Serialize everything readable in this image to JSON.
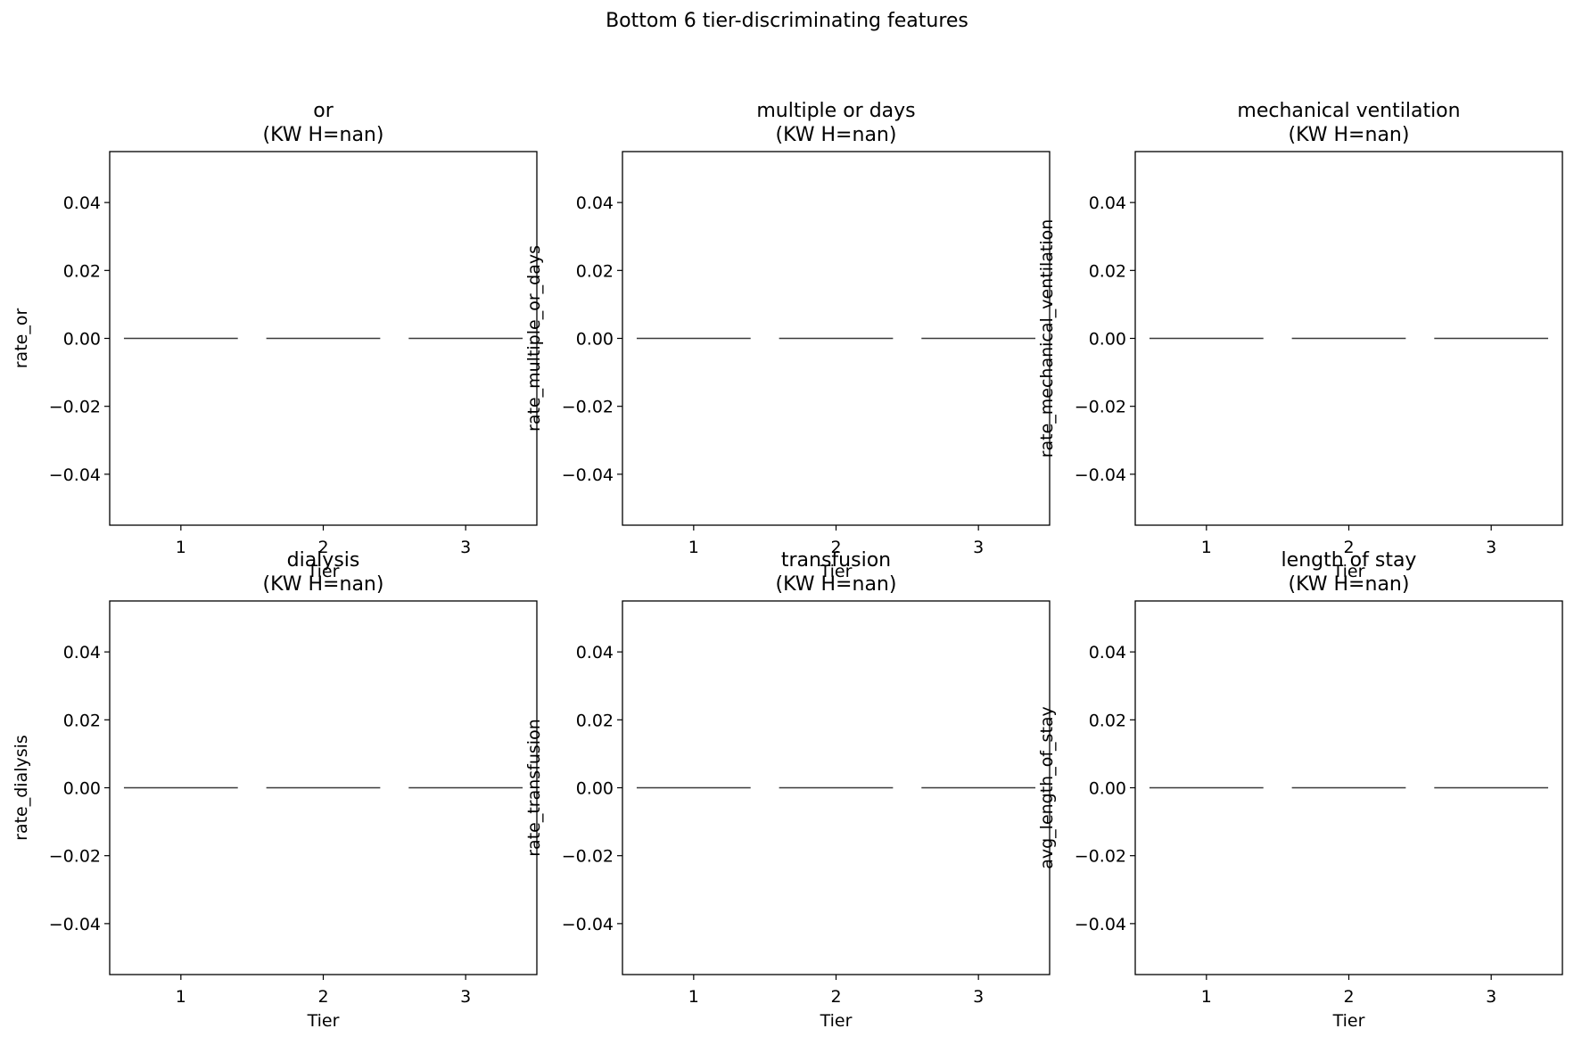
{
  "figure": {
    "suptitle": "Bottom 6 tier-discriminating features"
  },
  "chart_data": [
    {
      "type": "box",
      "title_line1": "or",
      "title_line2": "(KW H=nan)",
      "xlabel": "Tier",
      "ylabel": "rate_or",
      "categories": [
        "1",
        "2",
        "3"
      ],
      "values": [
        0.0,
        0.0,
        0.0
      ],
      "ylim": [
        -0.055,
        0.055
      ],
      "yticks": [
        0.04,
        0.02,
        0.0,
        -0.02,
        -0.04
      ],
      "ytick_labels": [
        "0.04",
        "0.02",
        "0.00",
        "−0.02",
        "−0.04"
      ],
      "grid": false
    },
    {
      "type": "box",
      "title_line1": "multiple or days",
      "title_line2": "(KW H=nan)",
      "xlabel": "Tier",
      "ylabel": "rate_multiple_or_days",
      "categories": [
        "1",
        "2",
        "3"
      ],
      "values": [
        0.0,
        0.0,
        0.0
      ],
      "ylim": [
        -0.055,
        0.055
      ],
      "yticks": [
        0.04,
        0.02,
        0.0,
        -0.02,
        -0.04
      ],
      "ytick_labels": [
        "0.04",
        "0.02",
        "0.00",
        "−0.02",
        "−0.04"
      ],
      "grid": false
    },
    {
      "type": "box",
      "title_line1": "mechanical ventilation",
      "title_line2": "(KW H=nan)",
      "xlabel": "Tier",
      "ylabel": "rate_mechanical_ventilation",
      "categories": [
        "1",
        "2",
        "3"
      ],
      "values": [
        0.0,
        0.0,
        0.0
      ],
      "ylim": [
        -0.055,
        0.055
      ],
      "yticks": [
        0.04,
        0.02,
        0.0,
        -0.02,
        -0.04
      ],
      "ytick_labels": [
        "0.04",
        "0.02",
        "0.00",
        "−0.02",
        "−0.04"
      ],
      "grid": false
    },
    {
      "type": "box",
      "title_line1": "dialysis",
      "title_line2": "(KW H=nan)",
      "xlabel": "Tier",
      "ylabel": "rate_dialysis",
      "categories": [
        "1",
        "2",
        "3"
      ],
      "values": [
        0.0,
        0.0,
        0.0
      ],
      "ylim": [
        -0.055,
        0.055
      ],
      "yticks": [
        0.04,
        0.02,
        0.0,
        -0.02,
        -0.04
      ],
      "ytick_labels": [
        "0.04",
        "0.02",
        "0.00",
        "−0.02",
        "−0.04"
      ],
      "grid": false
    },
    {
      "type": "box",
      "title_line1": "transfusion",
      "title_line2": "(KW H=nan)",
      "xlabel": "Tier",
      "ylabel": "rate_transfusion",
      "categories": [
        "1",
        "2",
        "3"
      ],
      "values": [
        0.0,
        0.0,
        0.0
      ],
      "ylim": [
        -0.055,
        0.055
      ],
      "yticks": [
        0.04,
        0.02,
        0.0,
        -0.02,
        -0.04
      ],
      "ytick_labels": [
        "0.04",
        "0.02",
        "0.00",
        "−0.02",
        "−0.04"
      ],
      "grid": false
    },
    {
      "type": "box",
      "title_line1": "length of stay",
      "title_line2": "(KW H=nan)",
      "xlabel": "Tier",
      "ylabel": "avg_length_of_stay",
      "categories": [
        "1",
        "2",
        "3"
      ],
      "values": [
        0.0,
        0.0,
        0.0
      ],
      "ylim": [
        -0.055,
        0.055
      ],
      "yticks": [
        0.04,
        0.02,
        0.0,
        -0.02,
        -0.04
      ],
      "ytick_labels": [
        "0.04",
        "0.02",
        "0.00",
        "−0.02",
        "−0.04"
      ],
      "grid": false
    }
  ]
}
